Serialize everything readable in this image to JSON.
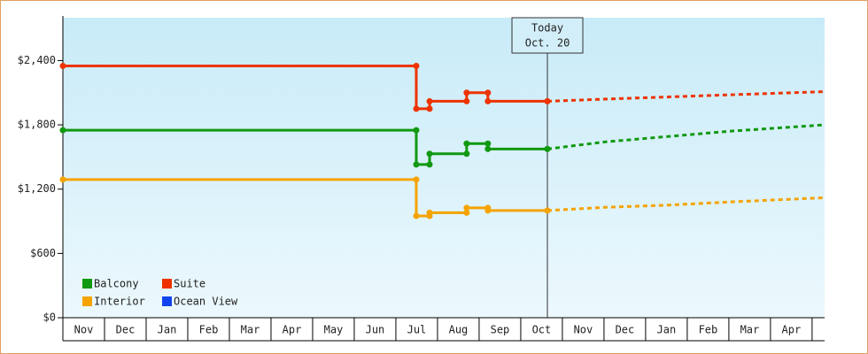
{
  "chart_data": {
    "type": "step-line",
    "xlim": [
      0,
      18.3
    ],
    "xticks": [
      {
        "value": 0,
        "label": "Nov"
      },
      {
        "value": 1,
        "label": "Dec"
      },
      {
        "value": 2,
        "label": "Jan"
      },
      {
        "value": 3,
        "label": "Feb"
      },
      {
        "value": 4,
        "label": "Mar"
      },
      {
        "value": 5,
        "label": "Apr"
      },
      {
        "value": 6,
        "label": "May"
      },
      {
        "value": 7,
        "label": "Jun"
      },
      {
        "value": 8,
        "label": "Jul"
      },
      {
        "value": 9,
        "label": "Aug"
      },
      {
        "value": 10,
        "label": "Sep"
      },
      {
        "value": 11,
        "label": "Oct"
      },
      {
        "value": 12,
        "label": "Nov"
      },
      {
        "value": 13,
        "label": "Dec"
      },
      {
        "value": 14,
        "label": "Jan"
      },
      {
        "value": 15,
        "label": "Feb"
      },
      {
        "value": 16,
        "label": "Mar"
      },
      {
        "value": 17,
        "label": "Apr"
      }
    ],
    "ylim": [
      0,
      2800
    ],
    "yticks": [
      {
        "value": 0,
        "label": "$0"
      },
      {
        "value": 600,
        "label": "$600"
      },
      {
        "value": 1200,
        "label": "$1,200"
      },
      {
        "value": 1800,
        "label": "$1,800"
      },
      {
        "value": 2400,
        "label": "$2,400"
      }
    ],
    "x": [
      0,
      8.49,
      8.49,
      8.81,
      8.81,
      9.7,
      9.7,
      10.21,
      10.21,
      11.64
    ],
    "forecast_x": [
      11.64,
      13,
      14.5,
      16,
      18.3
    ],
    "series": [
      {
        "name": "Balcony",
        "color": "#119911",
        "values": [
          1750,
          1750,
          1430,
          1430,
          1530,
          1530,
          1625,
          1625,
          1575,
          1575
        ],
        "forecast": [
          1575,
          1640,
          1690,
          1740,
          1800
        ]
      },
      {
        "name": "Suite",
        "color": "#ee3300",
        "values": [
          2350,
          2350,
          1950,
          1950,
          2020,
          2020,
          2100,
          2100,
          2020,
          2020
        ],
        "forecast": [
          2020,
          2040,
          2060,
          2080,
          2110
        ]
      },
      {
        "name": "Interior",
        "color": "#f5a300",
        "values": [
          1290,
          1290,
          950,
          950,
          980,
          980,
          1025,
          1025,
          1000,
          1000
        ],
        "forecast": [
          1000,
          1030,
          1050,
          1080,
          1120
        ]
      },
      {
        "name": "Ocean View",
        "color": "#1144ee",
        "values": [
          null,
          null,
          null,
          null,
          null,
          null,
          null,
          null,
          null,
          null
        ],
        "forecast": [
          null,
          null,
          null,
          null,
          null
        ]
      }
    ],
    "today": {
      "x": 11.64,
      "label": "Today",
      "date": "Oct. 20"
    }
  }
}
